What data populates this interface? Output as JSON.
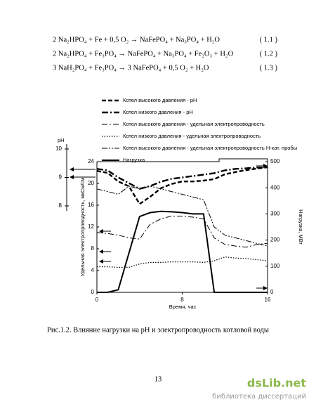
{
  "equations": [
    {
      "text": "2 Na₂HPO₄ + Fe + 0,5 O₂ → NaFePO₄ + Na₃PO₄ + H₂O",
      "number": "( 1.1 )"
    },
    {
      "text": "2 Na₂HPO₄ + Fe₃PO₄ → NaFePO₄ + Na₃PO₄ + Fe₂O₃ + H₂O",
      "number": "( 1.2 )"
    },
    {
      "text": "3 NaH₂PO₄ + Fe₃PO₄ → 3 NaFePO₄ + 0,5 O₂ + H₂O",
      "number": "( 1.3 )"
    }
  ],
  "chart_data": {
    "type": "line",
    "x": [
      0,
      1,
      2,
      3,
      4,
      5,
      6,
      7,
      8,
      9,
      10,
      11,
      12,
      13,
      14,
      15,
      16
    ],
    "xlim": [
      0,
      16
    ],
    "xticks": [
      0,
      8,
      16
    ],
    "xlabel": "Время, час",
    "ylabel": "Удельная электропроводность, мкСм/см",
    "ylim": [
      0,
      24
    ],
    "yticks": [
      0,
      4,
      8,
      12,
      16,
      20,
      24
    ],
    "y2label": "Нагрузка, МВт",
    "y2lim": [
      0,
      500
    ],
    "y2ticks": [
      0,
      100,
      200,
      300,
      400,
      500
    ],
    "y3label": "pH",
    "y3lim": [
      8,
      10
    ],
    "y3ticks": [
      8,
      9,
      10
    ],
    "series": [
      {
        "name": "Котел высокого давления - pH",
        "axis": "y3",
        "color": "#000",
        "line_style": "thick-dashed",
        "values": [
          9.23,
          9.16,
          8.86,
          8.69,
          8.07,
          8.32,
          8.62,
          8.77,
          8.86,
          8.86,
          8.89,
          8.94,
          9.11,
          9.19,
          9.26,
          9.31,
          9.36
        ]
      },
      {
        "name": "Котел низкого давления - pH",
        "axis": "y3",
        "color": "#000",
        "line_style": "thick-dashdot",
        "values": [
          9.3,
          9.25,
          9.0,
          8.8,
          8.6,
          8.7,
          8.85,
          8.95,
          9.0,
          9.05,
          9.1,
          9.15,
          9.25,
          9.3,
          9.32,
          9.35,
          9.35
        ]
      },
      {
        "name": "Котел высокого давления - удельная электропроводность",
        "axis": "y",
        "color": "#000",
        "line_style": "dashdot",
        "values": [
          11,
          10.8,
          10.5,
          10,
          9.8,
          12.5,
          13.5,
          14,
          14,
          13.8,
          13.5,
          10,
          8.8,
          8.5,
          8.3,
          8.8,
          9
        ]
      },
      {
        "name": "Котел низкого давления - удельная электропроводность",
        "axis": "y",
        "color": "#000",
        "line_style": "dotted",
        "values": [
          4.7,
          4.7,
          4.6,
          4.6,
          5.2,
          5.5,
          5.5,
          5.6,
          5.6,
          5.6,
          5.5,
          5.8,
          6.5,
          6.3,
          6.2,
          6,
          5.8
        ]
      },
      {
        "name": "Котел высокого давления - удельная электропроводность Н-кат. пробы",
        "axis": "y",
        "color": "#000",
        "line_style": "dashdotdot",
        "values": [
          19,
          18.5,
          18,
          19.5,
          19,
          19.5,
          19,
          18.5,
          18,
          17.5,
          17,
          12,
          10.5,
          10,
          9.5,
          9,
          8.5
        ]
      },
      {
        "name": "Нагрузка",
        "axis": "y2",
        "color": "#000",
        "line_style": "solid",
        "values": [
          0,
          0,
          10,
          150,
          290,
          305,
          310,
          308,
          305,
          300,
          300,
          0,
          0,
          0,
          0,
          0,
          0
        ]
      }
    ]
  },
  "caption": "Рис.1.2. Влияние нагрузки на pH и электропроводность котловой воды",
  "page_number": "13",
  "watermark": {
    "logo": "dsLib.net",
    "subtitle": "библиотека диссертаций"
  }
}
